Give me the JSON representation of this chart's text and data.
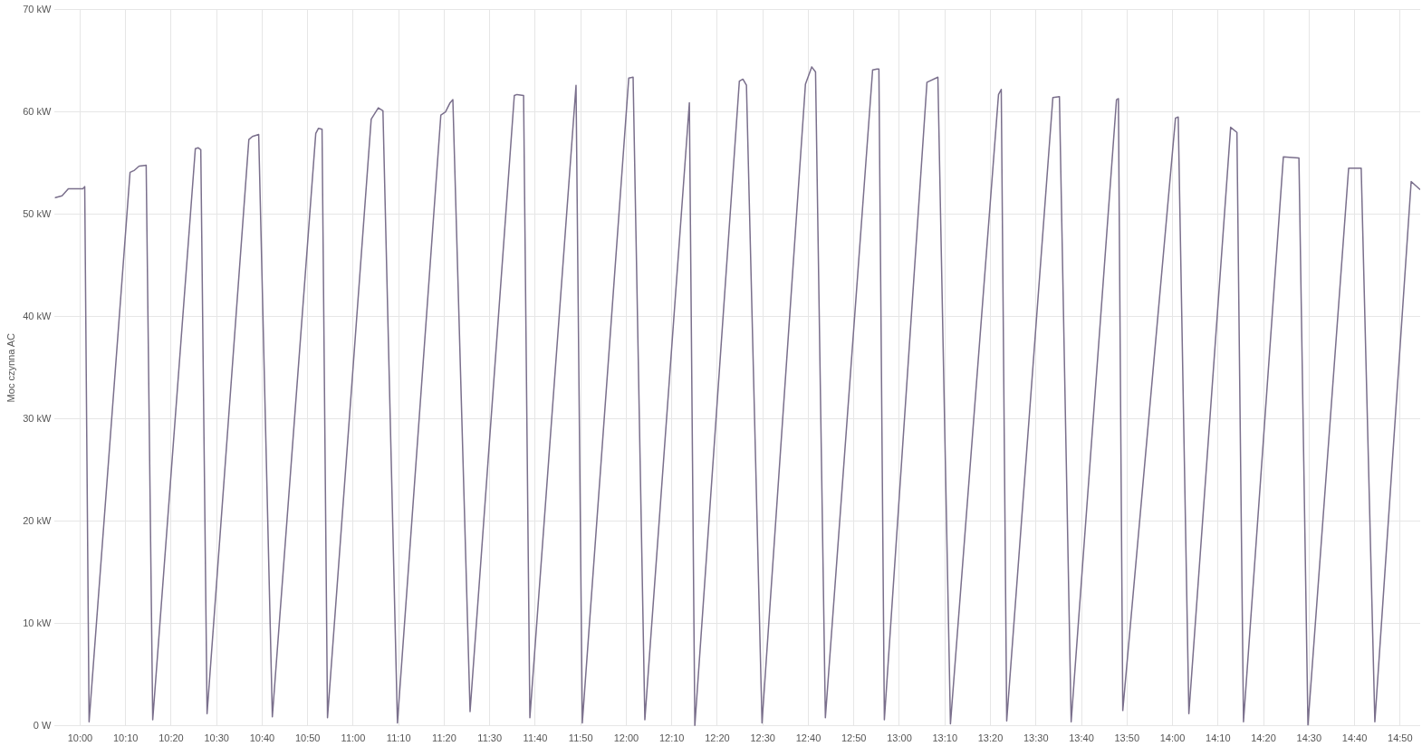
{
  "chart_data": {
    "type": "line",
    "ylabel": "Moc czynna AC",
    "grid": true,
    "legend": false,
    "marker": "none",
    "line_style": "solid",
    "xlim": [
      9.907,
      14.907
    ],
    "xticks": [
      {
        "value": 10,
        "label": "10:00"
      },
      {
        "value": 10.1667,
        "label": "10:10"
      },
      {
        "value": 10.3333,
        "label": "10:20"
      },
      {
        "value": 10.5,
        "label": "10:30"
      },
      {
        "value": 10.6667,
        "label": "10:40"
      },
      {
        "value": 10.8333,
        "label": "10:50"
      },
      {
        "value": 11,
        "label": "11:00"
      },
      {
        "value": 11.1667,
        "label": "11:10"
      },
      {
        "value": 11.3333,
        "label": "11:20"
      },
      {
        "value": 11.5,
        "label": "11:30"
      },
      {
        "value": 11.6667,
        "label": "11:40"
      },
      {
        "value": 11.8333,
        "label": "11:50"
      },
      {
        "value": 12,
        "label": "12:00"
      },
      {
        "value": 12.1667,
        "label": "12:10"
      },
      {
        "value": 12.3333,
        "label": "12:20"
      },
      {
        "value": 12.5,
        "label": "12:30"
      },
      {
        "value": 12.6667,
        "label": "12:40"
      },
      {
        "value": 12.8333,
        "label": "12:50"
      },
      {
        "value": 13,
        "label": "13:00"
      },
      {
        "value": 13.1667,
        "label": "13:10"
      },
      {
        "value": 13.3333,
        "label": "13:20"
      },
      {
        "value": 13.5,
        "label": "13:30"
      },
      {
        "value": 13.6667,
        "label": "13:40"
      },
      {
        "value": 13.8333,
        "label": "13:50"
      },
      {
        "value": 14,
        "label": "14:00"
      },
      {
        "value": 14.1667,
        "label": "14:10"
      },
      {
        "value": 14.3333,
        "label": "14:20"
      },
      {
        "value": 14.5,
        "label": "14:30"
      },
      {
        "value": 14.6667,
        "label": "14:40"
      },
      {
        "value": 14.8333,
        "label": "14:50"
      }
    ],
    "ylim": [
      0,
      70
    ],
    "yticks": [
      {
        "value": 0,
        "label": "0 W"
      },
      {
        "value": 10,
        "label": "10 kW"
      },
      {
        "value": 20,
        "label": "20 kW"
      },
      {
        "value": 30,
        "label": "30 kW"
      },
      {
        "value": 40,
        "label": "40 kW"
      },
      {
        "value": 50,
        "label": "50 kW"
      },
      {
        "value": 60,
        "label": "60 kW"
      },
      {
        "value": 70,
        "label": "70 kW"
      }
    ],
    "series": [
      {
        "color": "#7a6f8c",
        "x": [
          9.907,
          9.934,
          9.957,
          10.01,
          10.017,
          10.033,
          10.183,
          10.199,
          10.216,
          10.242,
          10.266,
          10.422,
          10.432,
          10.442,
          10.465,
          10.618,
          10.631,
          10.654,
          10.704,
          10.863,
          10.873,
          10.886,
          10.906,
          11.066,
          11.092,
          11.109,
          11.162,
          11.321,
          11.338,
          11.355,
          11.365,
          11.428,
          11.59,
          11.6,
          11.624,
          11.647,
          11.816,
          11.839,
          12.009,
          12.025,
          12.068,
          12.231,
          12.251,
          12.414,
          12.427,
          12.44,
          12.497,
          12.656,
          12.679,
          12.693,
          12.729,
          12.902,
          12.918,
          12.925,
          12.945,
          13.101,
          13.141,
          13.187,
          13.363,
          13.373,
          13.393,
          13.562,
          13.586,
          13.629,
          13.795,
          13.802,
          13.818,
          14.011,
          14.021,
          14.06,
          14.213,
          14.236,
          14.26,
          14.406,
          14.463,
          14.496,
          14.645,
          14.691,
          14.741,
          14.874,
          14.907
        ],
        "values": [
          51.6,
          51.8,
          52.5,
          52.5,
          52.7,
          0.4,
          54.1,
          54.3,
          54.7,
          54.8,
          0.6,
          56.4,
          56.5,
          56.3,
          1.2,
          57.3,
          57.6,
          57.8,
          0.9,
          57.9,
          58.4,
          58.3,
          0.8,
          59.3,
          60.4,
          60.1,
          0.3,
          59.7,
          60.0,
          60.9,
          61.2,
          1.4,
          61.6,
          61.7,
          61.6,
          0.8,
          62.6,
          0.3,
          63.3,
          63.4,
          0.6,
          60.9,
          0.0,
          63.0,
          63.2,
          62.6,
          0.3,
          62.7,
          64.4,
          63.9,
          0.8,
          64.1,
          64.2,
          64.2,
          0.6,
          62.9,
          63.4,
          0.2,
          61.7,
          62.2,
          0.5,
          61.4,
          61.5,
          0.4,
          61.2,
          61.3,
          1.5,
          59.4,
          59.5,
          1.2,
          58.5,
          58.0,
          0.4,
          55.6,
          55.5,
          0.1,
          54.5,
          54.5,
          0.4,
          53.2,
          52.4
        ]
      }
    ]
  }
}
